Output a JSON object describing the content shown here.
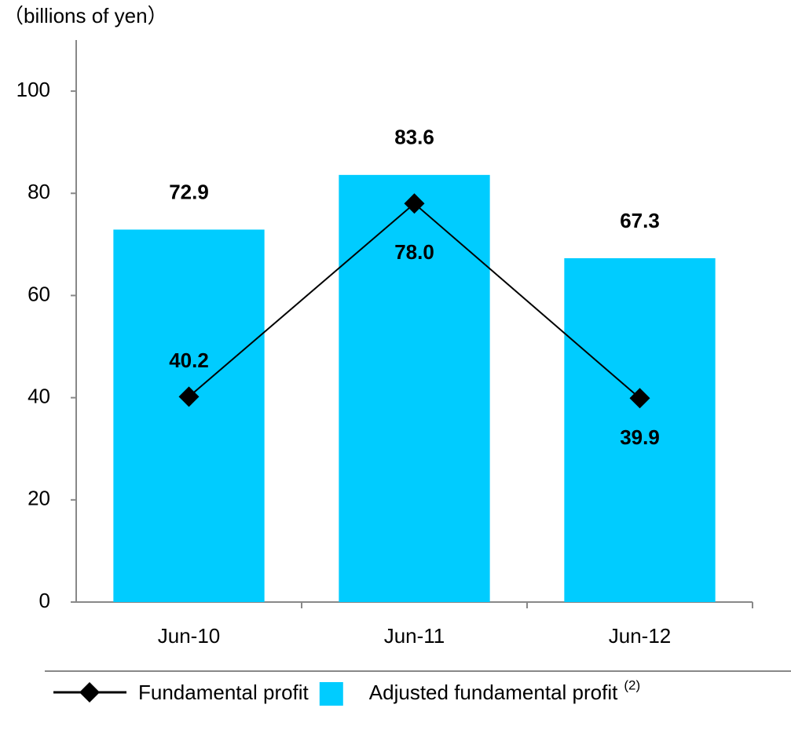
{
  "chart_data": {
    "type": "bar",
    "y_label": "（billions of yen）",
    "categories": [
      "Jun-10",
      "Jun-11",
      "Jun-12"
    ],
    "series": [
      {
        "name": "Fundamental profit",
        "type": "line",
        "color": "#000000",
        "values": [
          40.2,
          78.0,
          39.9
        ],
        "value_labels": [
          "40.2",
          "78.0",
          "39.9"
        ]
      },
      {
        "name": "Adjusted fundamental profit",
        "superscript": "(2)",
        "type": "bar",
        "color": "#00ccff",
        "values": [
          72.9,
          83.6,
          67.3
        ],
        "value_labels": [
          "72.9",
          "83.6",
          "67.3"
        ]
      }
    ],
    "ylim": [
      0,
      110
    ],
    "yticks": [
      0,
      20,
      40,
      60,
      80,
      100
    ],
    "grid": false,
    "legend": "bottom"
  }
}
